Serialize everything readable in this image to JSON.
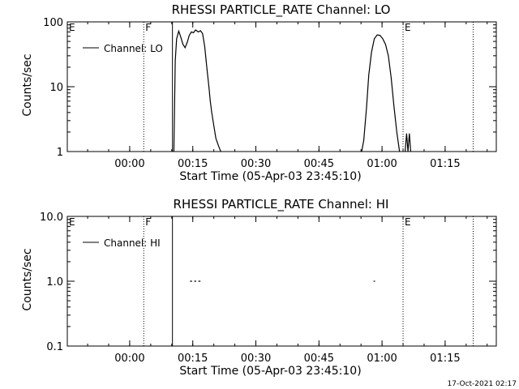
{
  "chart_data": [
    {
      "type": "line",
      "title": "RHESSI  PARTICLE_RATE  Channel:  LO",
      "xlabel": "Start Time (05-Apr-03 23:45:10)",
      "ylabel": "Counts/sec",
      "yscale": "log",
      "ylim": [
        1,
        100
      ],
      "xlim_minutes_after_start": [
        0,
        102
      ],
      "x_tick_labels": [
        "00:00",
        "00:15",
        "00:30",
        "00:45",
        "01:00",
        "01:15"
      ],
      "y_tick_labels": [
        "1",
        "10",
        "100"
      ],
      "legend": {
        "entries": [
          "Channel:  LO"
        ],
        "placement": "top-left"
      },
      "markers": [
        {
          "label": "E",
          "time": "23:45:10",
          "style": "dotted"
        },
        {
          "label": "F",
          "time": "00:03:20",
          "style": "dotted"
        },
        {
          "label": "",
          "time": "00:10:10",
          "style": "solid"
        },
        {
          "label": "E",
          "time": "01:05:00",
          "style": "dotted"
        },
        {
          "label": "",
          "time": "01:21:40",
          "style": "dotted"
        }
      ],
      "series": [
        {
          "name": "Channel:  LO",
          "segments": [
            [
              [
                "00:10:30",
                1
              ],
              [
                "00:10:50",
                25
              ],
              [
                "00:11:10",
                55
              ],
              [
                "00:11:40",
                72
              ],
              [
                "00:12:10",
                58
              ],
              [
                "00:12:40",
                45
              ],
              [
                "00:13:10",
                40
              ],
              [
                "00:13:40",
                48
              ],
              [
                "00:14:10",
                62
              ],
              [
                "00:14:40",
                70
              ],
              [
                "00:15:10",
                68
              ],
              [
                "00:15:40",
                75
              ],
              [
                "00:16:20",
                70
              ],
              [
                "00:16:50",
                73
              ],
              [
                "00:17:20",
                66
              ],
              [
                "00:17:50",
                42
              ],
              [
                "00:18:20",
                20
              ],
              [
                "00:18:50",
                10
              ],
              [
                "00:19:10",
                6
              ],
              [
                "00:19:30",
                4
              ],
              [
                "00:20:00",
                2.5
              ],
              [
                "00:20:30",
                1.6
              ],
              [
                "00:21:10",
                1.2
              ],
              [
                "00:21:40",
                1
              ]
            ],
            [
              [
                "00:55:10",
                1
              ],
              [
                "00:55:40",
                1.5
              ],
              [
                "00:56:20",
                5
              ],
              [
                "00:56:50",
                15
              ],
              [
                "00:57:30",
                34
              ],
              [
                "00:58:10",
                55
              ],
              [
                "00:58:50",
                63
              ],
              [
                "00:59:30",
                62
              ],
              [
                "01:00:10",
                55
              ],
              [
                "01:00:50",
                45
              ],
              [
                "01:01:30",
                30
              ],
              [
                "01:02:10",
                14
              ],
              [
                "01:02:50",
                5
              ],
              [
                "01:03:30",
                2
              ],
              [
                "01:04:10",
                1
              ]
            ],
            [
              [
                "01:05:30",
                1
              ],
              [
                "01:05:50",
                1.9
              ],
              [
                "01:06:10",
                1
              ],
              [
                "01:06:30",
                1.9
              ],
              [
                "01:06:50",
                1
              ]
            ]
          ]
        }
      ]
    },
    {
      "type": "line",
      "title": "RHESSI  PARTICLE_RATE  Channel:  HI",
      "xlabel": "Start Time (05-Apr-03 23:45:10)",
      "ylabel": "Counts/sec",
      "yscale": "log",
      "ylim": [
        0.1,
        10
      ],
      "xlim_minutes_after_start": [
        0,
        102
      ],
      "x_tick_labels": [
        "00:00",
        "00:15",
        "00:30",
        "00:45",
        "01:00",
        "01:15"
      ],
      "y_tick_labels": [
        "0.1",
        "1.0",
        "10.0"
      ],
      "legend": {
        "entries": [
          "Channel:  HI"
        ],
        "placement": "top-left"
      },
      "markers": [
        {
          "label": "E",
          "time": "23:45:10",
          "style": "dotted"
        },
        {
          "label": "F",
          "time": "00:03:20",
          "style": "dotted"
        },
        {
          "label": "",
          "time": "00:10:10",
          "style": "solid"
        },
        {
          "label": "E",
          "time": "01:05:00",
          "style": "dotted"
        },
        {
          "label": "",
          "time": "01:21:40",
          "style": "dotted"
        }
      ],
      "series": [
        {
          "name": "Channel:  HI",
          "segments": [
            [
              [
                "00:14:20",
                1
              ],
              [
                "00:14:50",
                1
              ]
            ],
            [
              [
                "00:15:20",
                1
              ],
              [
                "00:15:50",
                1
              ]
            ],
            [
              [
                "00:16:20",
                1
              ],
              [
                "00:16:50",
                1
              ]
            ],
            [
              [
                "00:58:00",
                1
              ],
              [
                "00:58:20",
                1
              ]
            ]
          ]
        }
      ]
    }
  ],
  "footer": {
    "timestamp": "17-Oct-2021 02:17"
  }
}
